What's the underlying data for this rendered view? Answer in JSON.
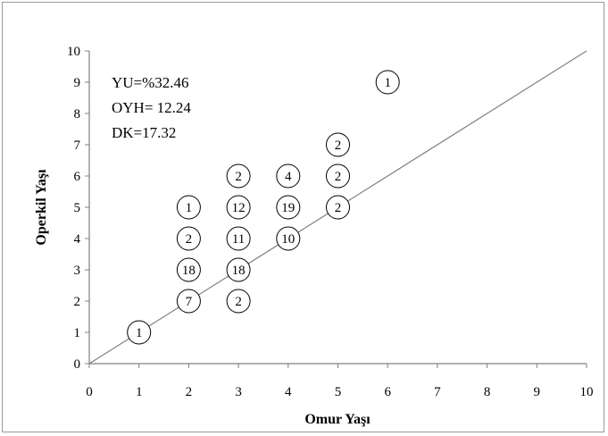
{
  "chart_data": {
    "type": "scatter",
    "xlabel": "Omur Yaşı",
    "ylabel": "Operkil Yaşı",
    "xlim": [
      0,
      10
    ],
    "ylim": [
      0,
      10
    ],
    "xticks": [
      0,
      1,
      2,
      3,
      4,
      5,
      6,
      7,
      8,
      9,
      10
    ],
    "yticks": [
      0,
      1,
      2,
      3,
      4,
      5,
      6,
      7,
      8,
      9,
      10
    ],
    "grid": false,
    "reference_line": {
      "from": [
        0,
        0
      ],
      "to": [
        10,
        10
      ]
    },
    "annotations": [
      "YU=%32.46",
      "OYH= 12.24",
      "DK=17.32"
    ],
    "points": [
      {
        "x": 1,
        "y": 1,
        "label": "1"
      },
      {
        "x": 2,
        "y": 2,
        "label": "7"
      },
      {
        "x": 2,
        "y": 3,
        "label": "18"
      },
      {
        "x": 2,
        "y": 4,
        "label": "2"
      },
      {
        "x": 2,
        "y": 5,
        "label": "1"
      },
      {
        "x": 3,
        "y": 2,
        "label": "2"
      },
      {
        "x": 3,
        "y": 3,
        "label": "18"
      },
      {
        "x": 3,
        "y": 4,
        "label": "11"
      },
      {
        "x": 3,
        "y": 5,
        "label": "12"
      },
      {
        "x": 3,
        "y": 6,
        "label": "2"
      },
      {
        "x": 4,
        "y": 4,
        "label": "10"
      },
      {
        "x": 4,
        "y": 5,
        "label": "19"
      },
      {
        "x": 4,
        "y": 6,
        "label": "4"
      },
      {
        "x": 5,
        "y": 5,
        "label": "2"
      },
      {
        "x": 5,
        "y": 6,
        "label": "2"
      },
      {
        "x": 5,
        "y": 7,
        "label": "2"
      },
      {
        "x": 6,
        "y": 9,
        "label": "1"
      }
    ],
    "colors": {
      "marker_stroke": "#000000",
      "line": "#808080",
      "axis": "#808080"
    }
  }
}
